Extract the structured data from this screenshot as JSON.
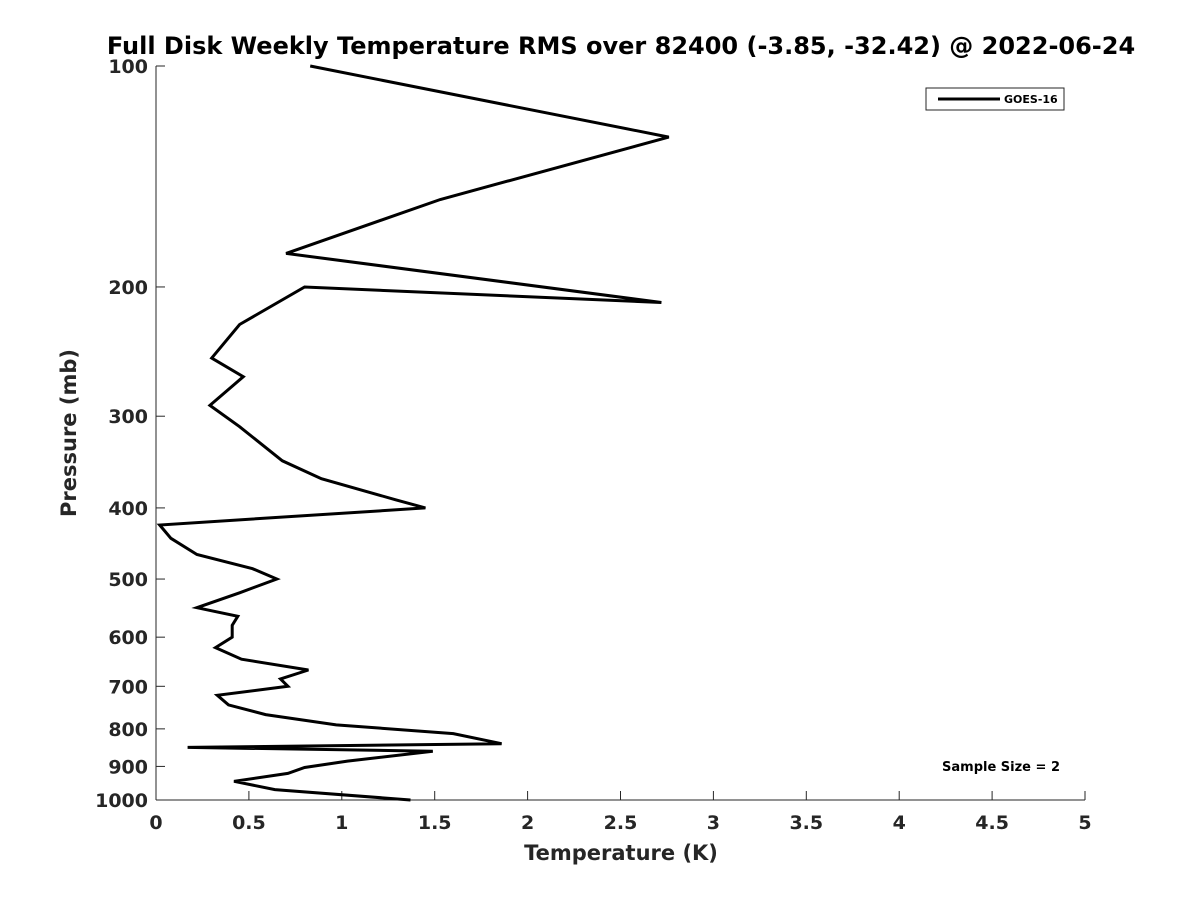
{
  "chart_data": {
    "type": "line",
    "title": "Full Disk Weekly Temperature RMS over 82400 (-3.85, -32.42) @ 2022-06-24",
    "xlabel": "Temperature (K)",
    "ylabel": "Pressure (mb)",
    "xlim": [
      0,
      5
    ],
    "ylim": [
      100,
      1000
    ],
    "yscale": "log",
    "yreversed": true,
    "xticks": [
      0,
      0.5,
      1,
      1.5,
      2,
      2.5,
      3,
      3.5,
      4,
      4.5,
      5
    ],
    "xtick_labels": [
      "0",
      "0.5",
      "1",
      "1.5",
      "2",
      "2.5",
      "3",
      "3.5",
      "4",
      "4.5",
      "5"
    ],
    "yticks": [
      100,
      200,
      300,
      400,
      500,
      600,
      700,
      800,
      900,
      1000
    ],
    "ytick_labels": [
      "100",
      "200",
      "300",
      "400",
      "500",
      "600",
      "700",
      "800",
      "900",
      "1000"
    ],
    "grid": false,
    "legend_position": "top-right",
    "series": [
      {
        "name": "GOES-16",
        "color": "#000000",
        "points": [
          [
            0.83,
            100
          ],
          [
            2.76,
            125
          ],
          [
            1.53,
            152
          ],
          [
            0.7,
            180
          ],
          [
            2.72,
            210
          ],
          [
            0.8,
            200
          ],
          [
            0.45,
            225
          ],
          [
            0.3,
            250
          ],
          [
            0.47,
            265
          ],
          [
            0.29,
            290
          ],
          [
            0.45,
            310
          ],
          [
            0.68,
            345
          ],
          [
            0.89,
            365
          ],
          [
            1.29,
            390
          ],
          [
            1.45,
            400
          ],
          [
            0.02,
            422
          ],
          [
            0.08,
            440
          ],
          [
            0.22,
            463
          ],
          [
            0.52,
            484
          ],
          [
            0.65,
            500
          ],
          [
            0.45,
            522
          ],
          [
            0.22,
            547
          ],
          [
            0.44,
            562
          ],
          [
            0.41,
            578
          ],
          [
            0.41,
            600
          ],
          [
            0.32,
            620
          ],
          [
            0.46,
            643
          ],
          [
            0.82,
            665
          ],
          [
            0.67,
            684
          ],
          [
            0.71,
            700
          ],
          [
            0.33,
            720
          ],
          [
            0.39,
            742
          ],
          [
            0.59,
            765
          ],
          [
            0.97,
            790
          ],
          [
            1.6,
            812
          ],
          [
            1.86,
            838
          ],
          [
            0.17,
            848
          ],
          [
            1.49,
            858
          ],
          [
            1.03,
            885
          ],
          [
            0.8,
            903
          ],
          [
            0.71,
            920
          ],
          [
            0.42,
            943
          ],
          [
            0.64,
            968
          ],
          [
            1.37,
            1000
          ]
        ]
      }
    ],
    "annotations": [
      "Sample Size = 2"
    ]
  }
}
